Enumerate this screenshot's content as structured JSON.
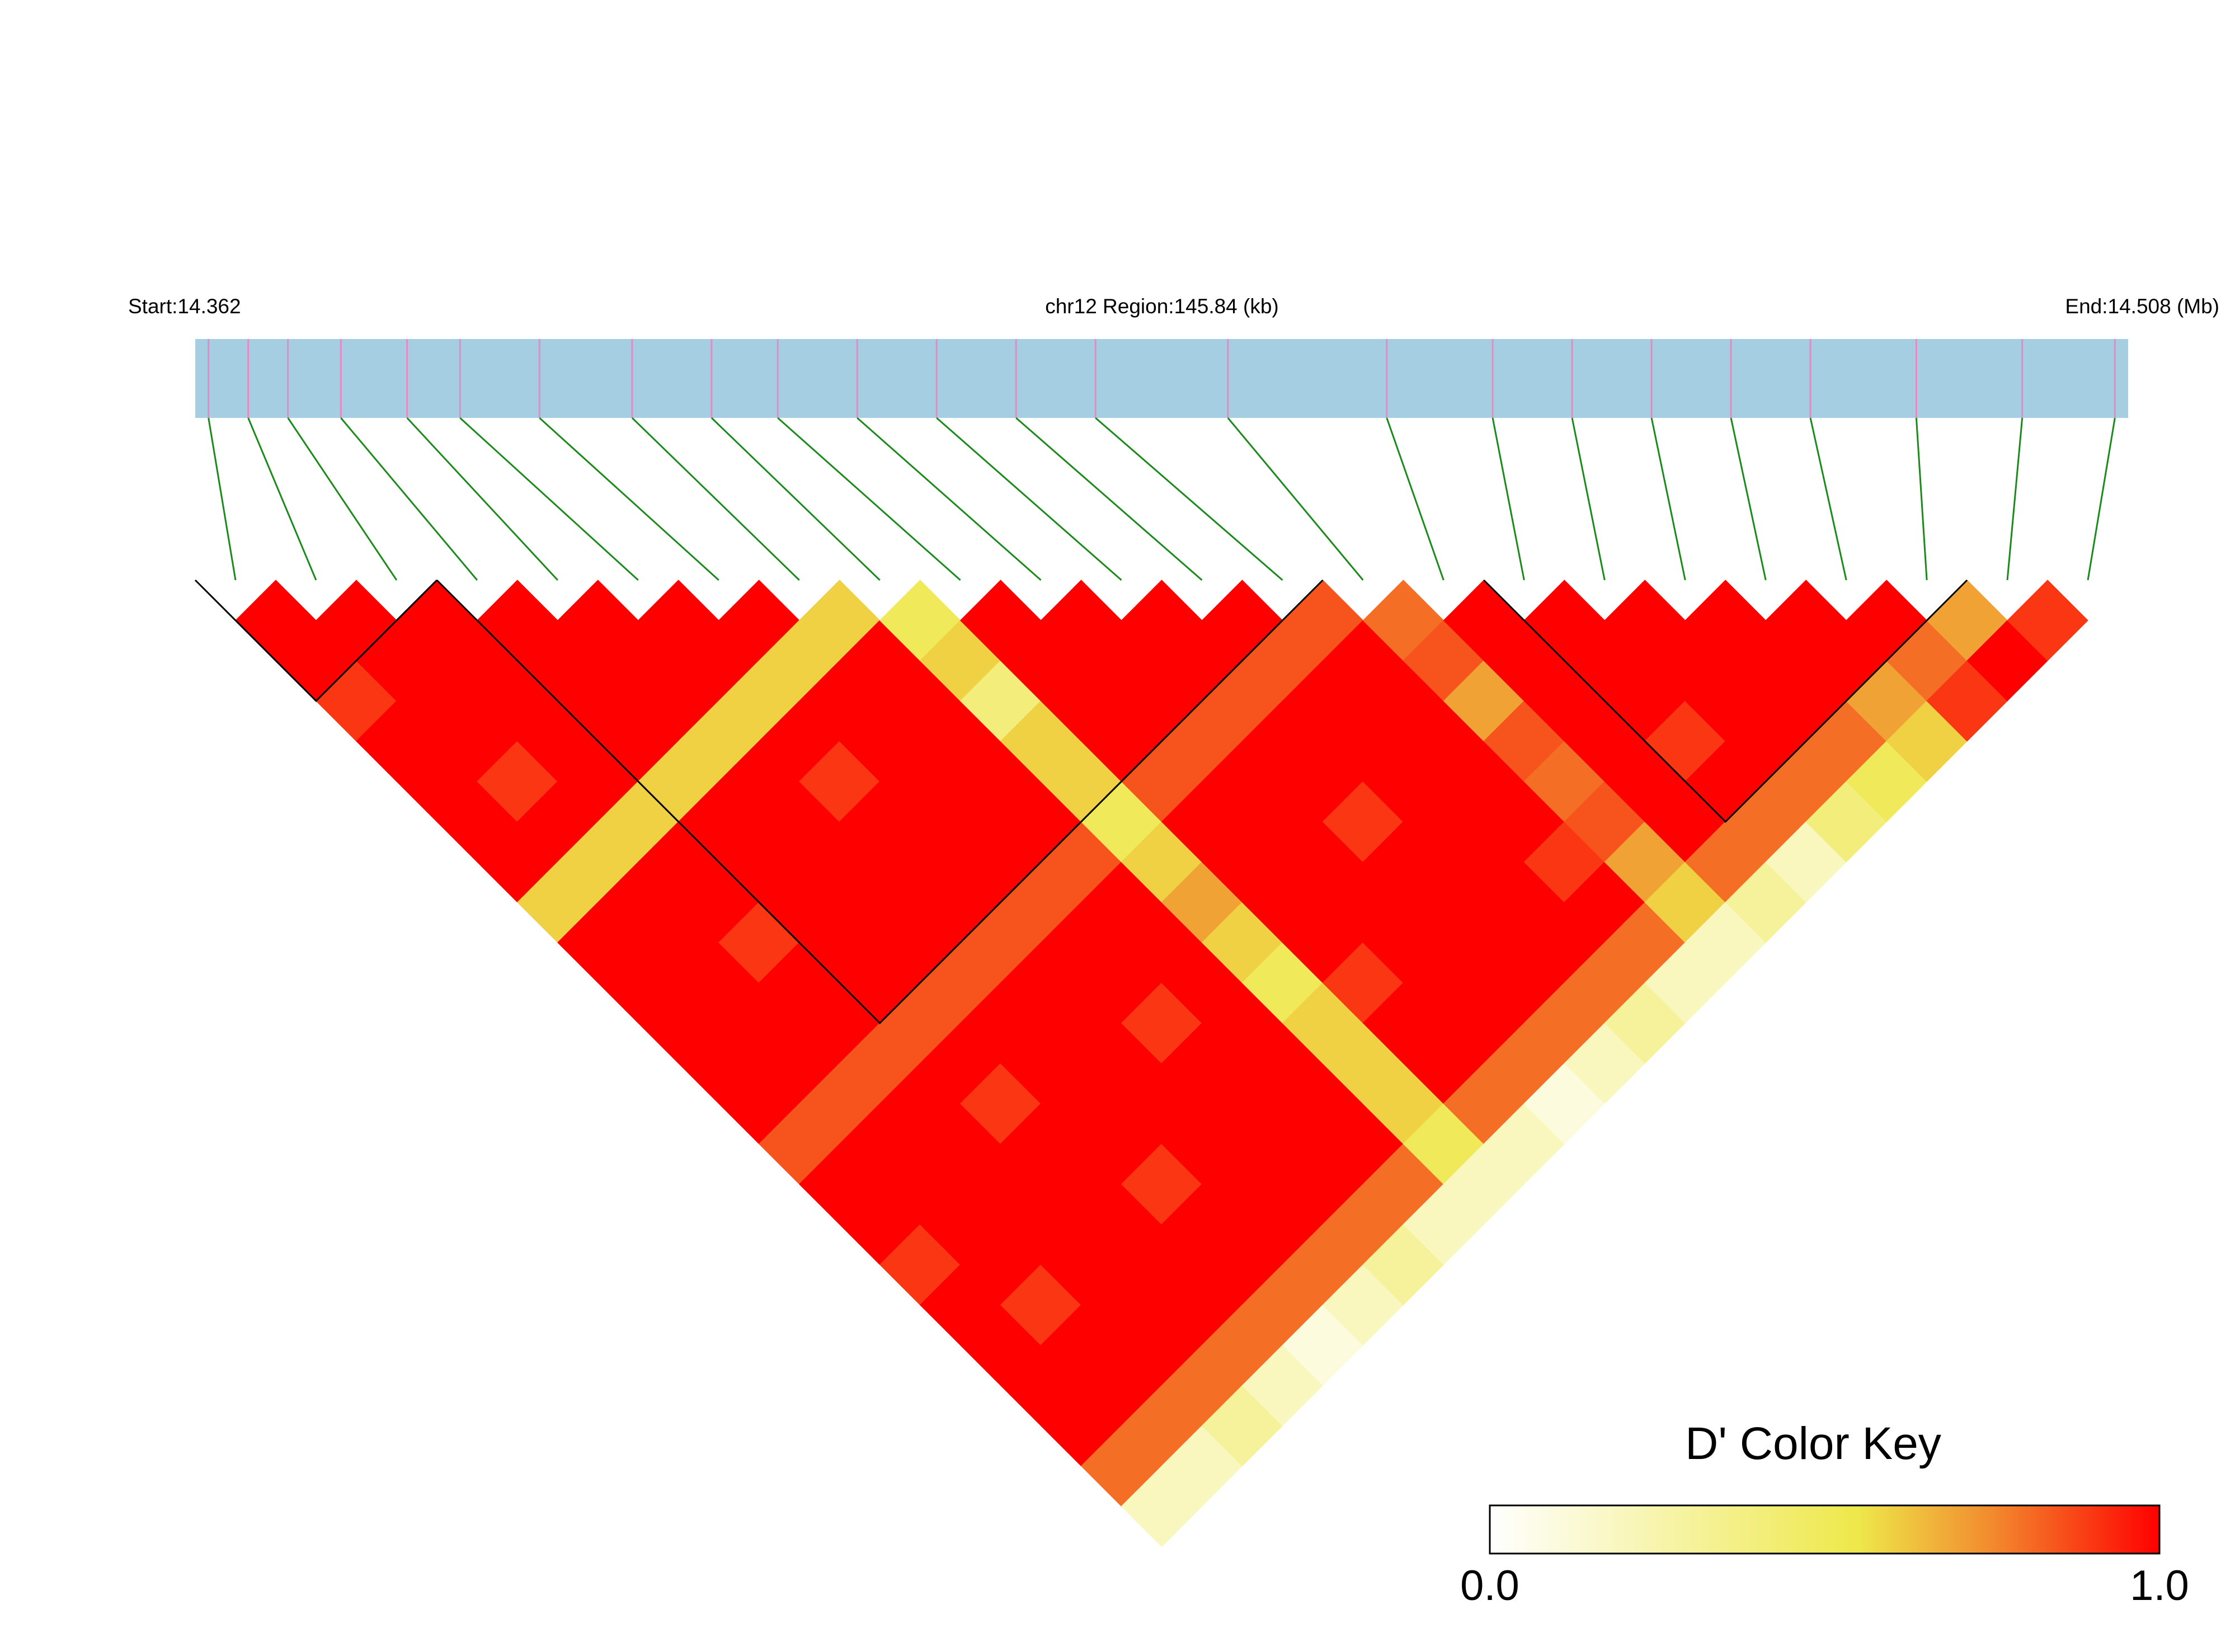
{
  "chart_data": {
    "type": "ld_heatmap",
    "start_label": "Start:14.362",
    "region_label": "chr12 Region:145.84 (kb)",
    "end_label": "End:14.508 (Mb)",
    "xlim": [
      14.362,
      14.508
    ],
    "positions": [
      14.363,
      14.366,
      14.369,
      14.373,
      14.378,
      14.382,
      14.388,
      14.395,
      14.401,
      14.406,
      14.412,
      14.418,
      14.424,
      14.43,
      14.44,
      14.452,
      14.46,
      14.466,
      14.472,
      14.478,
      14.484,
      14.492,
      14.5,
      14.507
    ],
    "dprime": [
      [
        1,
        1,
        0.9,
        1,
        1,
        1,
        1,
        0.6,
        1,
        1,
        1,
        1,
        1,
        0.85,
        1,
        1,
        0.9,
        1,
        1,
        1,
        1,
        0.8,
        0.2
      ],
      [
        1,
        1,
        1,
        1,
        0.9,
        1,
        0.6,
        1,
        1,
        1,
        1,
        1,
        0.85,
        1,
        1,
        1,
        1,
        0.9,
        1,
        1,
        0.8,
        0.2
      ],
      [
        1,
        1,
        1,
        1,
        1,
        0.6,
        1,
        1,
        0.9,
        1,
        1,
        0.85,
        1,
        1,
        1,
        1,
        1,
        1,
        1,
        0.8,
        0.3
      ],
      [
        1,
        1,
        1,
        1,
        0.6,
        1,
        1,
        1,
        1,
        1,
        0.85,
        1,
        0.9,
        1,
        1,
        1,
        1,
        1,
        0.8,
        0.2
      ],
      [
        1,
        1,
        1,
        0.6,
        1,
        1,
        1,
        1,
        1,
        0.85,
        1,
        1,
        1,
        1,
        0.9,
        1,
        1,
        0.8,
        0.1
      ],
      [
        1,
        1,
        0.6,
        1,
        0.9,
        1,
        1,
        1,
        0.85,
        1,
        1,
        1,
        1,
        1,
        1,
        1,
        0.8,
        0.2
      ],
      [
        1,
        0.6,
        1,
        1,
        1,
        1,
        1,
        0.85,
        1,
        1,
        0.9,
        1,
        1,
        1,
        1,
        0.8,
        0.3
      ],
      [
        0.6,
        1,
        1,
        1,
        1,
        1,
        0.85,
        1,
        1,
        1,
        1,
        1,
        1,
        1,
        0.8,
        0.2
      ],
      [
        0.5,
        0.6,
        0.4,
        0.6,
        0.6,
        0.5,
        0.6,
        0.7,
        0.6,
        0.5,
        0.6,
        0.6,
        0.6,
        0.5,
        0.2
      ],
      [
        1,
        1,
        1,
        1,
        0.85,
        1,
        1,
        1,
        1,
        0.9,
        1,
        1,
        0.8,
        0.2
      ],
      [
        1,
        1,
        1,
        0.85,
        1,
        1,
        1,
        1,
        1,
        1,
        1,
        0.8,
        0.1
      ],
      [
        1,
        1,
        0.85,
        1,
        1,
        0.9,
        1,
        1,
        1,
        1,
        0.8,
        0.2
      ],
      [
        1,
        0.85,
        1,
        1,
        1,
        1,
        1,
        1,
        1,
        0.8,
        0.3
      ],
      [
        0.85,
        1,
        1,
        1,
        1,
        1,
        0.9,
        1,
        0.8,
        0.2
      ],
      [
        0.8,
        0.85,
        0.7,
        0.85,
        0.8,
        0.85,
        0.7,
        0.6,
        0.2
      ],
      [
        1,
        1,
        1,
        1,
        1,
        1,
        0.8,
        0.3
      ],
      [
        1,
        1,
        1,
        0.9,
        1,
        0.8,
        0.2
      ],
      [
        1,
        1,
        1,
        1,
        0.8,
        0.4
      ],
      [
        1,
        1,
        1,
        0.8,
        0.5
      ],
      [
        1,
        1,
        0.7,
        0.6
      ],
      [
        1,
        0.8,
        0.9
      ],
      [
        0.7,
        1
      ],
      [
        0.9
      ]
    ],
    "blocks": [
      [
        0,
        2
      ],
      [
        3,
        13
      ],
      [
        16,
        21
      ]
    ],
    "band_color": "#a6cee3",
    "marker_color": "#e78ac3",
    "link_color": "#1a8a1a",
    "colorscale": [
      [
        0,
        "#ffffff"
      ],
      [
        0.55,
        "#eee84a"
      ],
      [
        0.75,
        "#f28a2e"
      ],
      [
        1,
        "#ff0000"
      ]
    ],
    "key_title": "D' Color Key",
    "key_ticks": [
      {
        "value": 0,
        "label": "0.0"
      },
      {
        "value": 1,
        "label": "1.0"
      }
    ]
  }
}
